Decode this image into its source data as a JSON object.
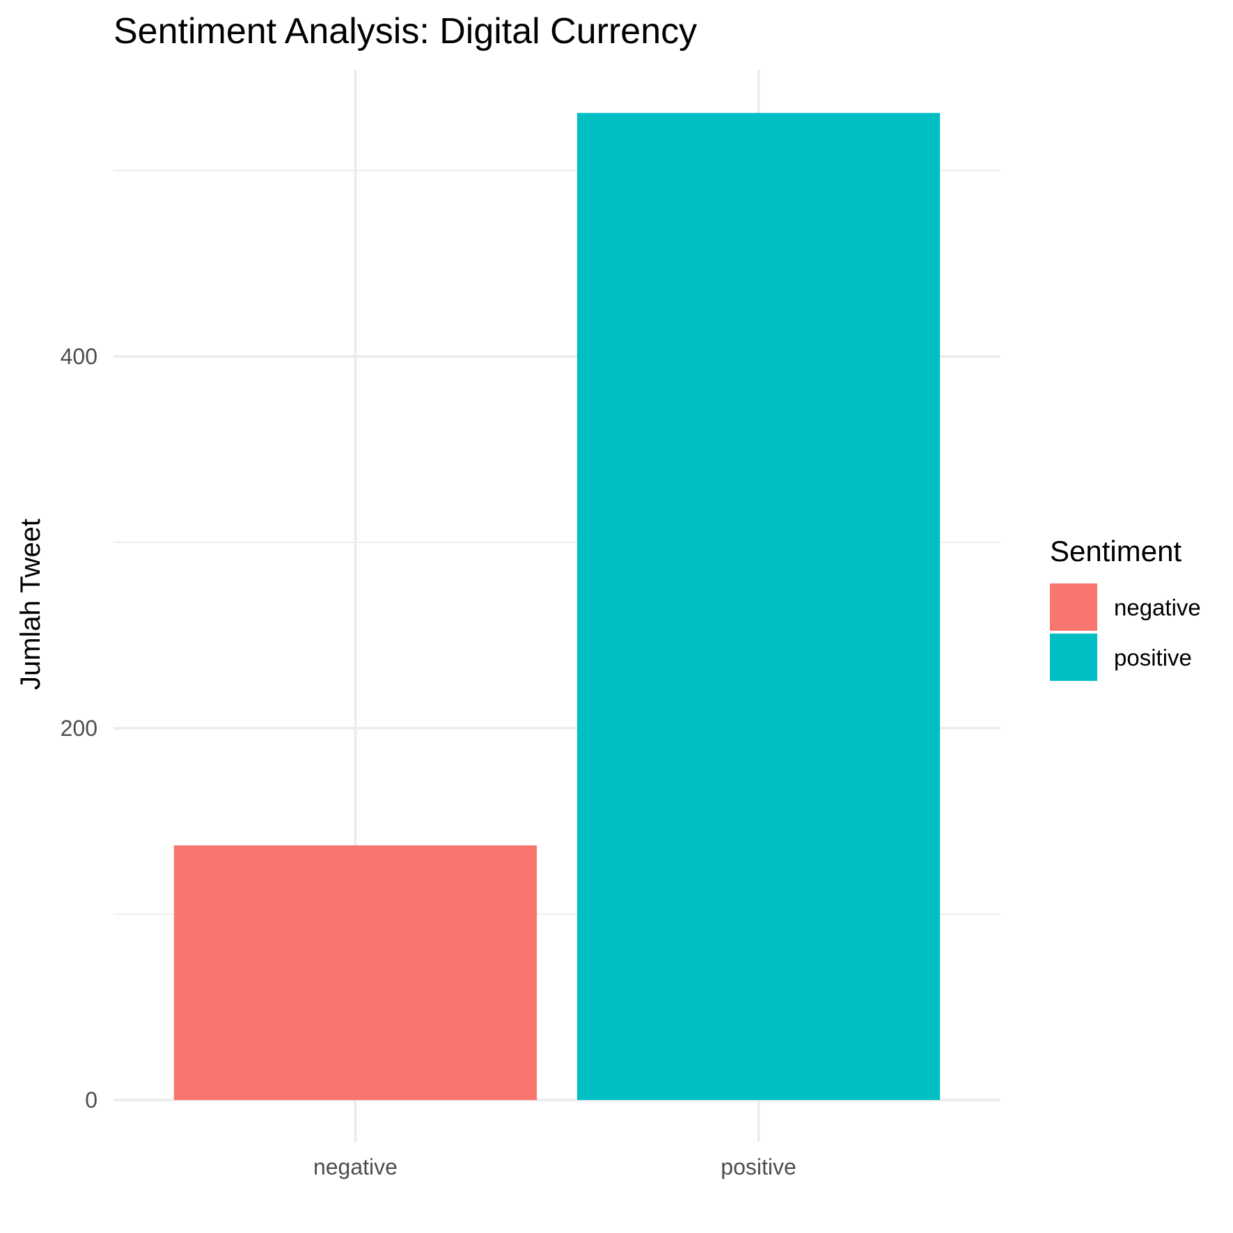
{
  "chart_data": {
    "type": "bar",
    "title": "Sentiment Analysis: Digital Currency",
    "xlabel": "",
    "ylabel": "Jumlah Tweet",
    "categories": [
      "negative",
      "positive"
    ],
    "values": [
      137,
      531
    ],
    "colors": [
      "#F8766D",
      "#00BFC4"
    ],
    "ylim": [
      0,
      560
    ],
    "yticks": [
      0,
      200,
      400
    ],
    "ytick_labels": [
      "0",
      "200",
      "400"
    ],
    "grid": true,
    "legend": {
      "title": "Sentiment",
      "position": "right",
      "items": [
        {
          "label": "negative",
          "color": "#F8766D"
        },
        {
          "label": "positive",
          "color": "#00BFC4"
        }
      ]
    }
  }
}
